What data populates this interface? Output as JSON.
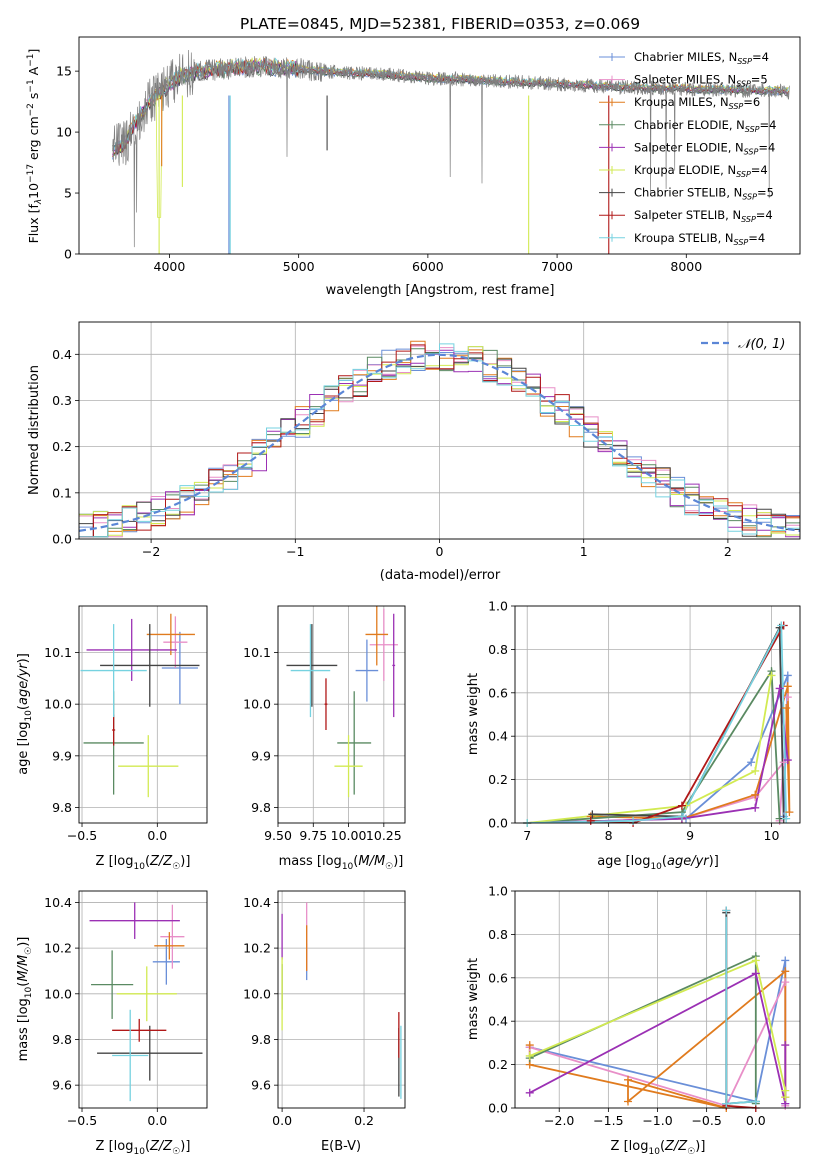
{
  "figure_title": "PLATE=0845, MJD=52381, FIBERID=0353, z=0.069",
  "colors": {
    "cm": "#6a8fd8",
    "sm": "#e88fc8",
    "km": "#e07b1e",
    "ce": "#5a8a62",
    "se": "#9b30b4",
    "ke": "#d2ea52",
    "cs": "#444444",
    "ss": "#b01818",
    "ks": "#76d2e0",
    "spec": "#808080",
    "norm": "#5b86d6",
    "grid": "#b0b0b0"
  },
  "chart_data": [
    {
      "id": "spectrum",
      "type": "line",
      "title": "PLATE=0845, MJD=52381, FIBERID=0353, z=0.069",
      "xlabel": "wavelength [Angstrom, rest frame]",
      "ylabel": "Flux [fλ10⁻¹⁷ erg cm⁻² s⁻¹ A⁻¹]",
      "xlim": [
        3300,
        8880
      ],
      "ylim": [
        0,
        17.8
      ],
      "xticks": [
        4000,
        5000,
        6000,
        7000,
        8000
      ],
      "yticks": [
        0,
        5,
        10,
        15
      ],
      "grid": false,
      "legend_position": "top-right",
      "observed_spectrum": {
        "x": [
          3560,
          3650,
          3750,
          3850,
          3950,
          4050,
          4150,
          4250,
          4350,
          4450,
          4550,
          4700,
          4850,
          5000,
          5150,
          5300,
          5500,
          5700,
          5900,
          6100,
          6300,
          6500,
          6700,
          6900,
          7100,
          7300,
          7500,
          7700,
          7900,
          8100,
          8300,
          8500,
          8700,
          8800
        ],
        "y": [
          8.5,
          9.0,
          11.0,
          12.5,
          13.5,
          14.3,
          14.8,
          15.0,
          15.1,
          15.2,
          15.3,
          15.4,
          15.3,
          15.2,
          15.0,
          14.9,
          14.8,
          14.7,
          14.5,
          14.4,
          14.3,
          14.2,
          14.1,
          14.0,
          13.9,
          13.8,
          13.7,
          13.6,
          13.6,
          13.5,
          13.5,
          13.4,
          13.4,
          13.3
        ]
      },
      "series": [
        {
          "name": "Chabrier MILES, N_SSP=4",
          "ckey": "cm"
        },
        {
          "name": "Salpeter MILES, N_SSP=5",
          "ckey": "sm"
        },
        {
          "name": "Kroupa MILES, N_SSP=6",
          "ckey": "km"
        },
        {
          "name": "Chabrier ELODIE, N_SSP=4",
          "ckey": "ce"
        },
        {
          "name": "Salpeter ELODIE, N_SSP=4",
          "ckey": "se"
        },
        {
          "name": "Kroupa ELODIE, N_SSP=4",
          "ckey": "ke"
        },
        {
          "name": "Chabrier STELIB, N_SSP=5",
          "ckey": "cs"
        },
        {
          "name": "Salpeter STELIB, N_SSP=4",
          "ckey": "ss"
        },
        {
          "name": "Kroupa STELIB, N_SSP=4",
          "ckey": "ks"
        }
      ],
      "legend_entries": [
        {
          "name": "Chabrier MILES, N",
          "sub": "SSP",
          "tail": "=4",
          "ckey": "cm"
        },
        {
          "name": "Salpeter MILES, N",
          "sub": "SSP",
          "tail": "=5",
          "ckey": "sm"
        },
        {
          "name": "Kroupa MILES, N",
          "sub": "SSP",
          "tail": "=6",
          "ckey": "km"
        },
        {
          "name": "Chabrier ELODIE, N",
          "sub": "SSP",
          "tail": "=4",
          "ckey": "ce"
        },
        {
          "name": "Salpeter ELODIE, N",
          "sub": "SSP",
          "tail": "=4",
          "ckey": "se"
        },
        {
          "name": "Kroupa ELODIE, N",
          "sub": "SSP",
          "tail": "=4",
          "ckey": "ke"
        },
        {
          "name": "Chabrier STELIB, N",
          "sub": "SSP",
          "tail": "=5",
          "ckey": "cs"
        },
        {
          "name": "Salpeter STELIB, N",
          "sub": "SSP",
          "tail": "=4",
          "ckey": "ss"
        },
        {
          "name": "Kroupa STELIB, N",
          "sub": "SSP",
          "tail": "=4",
          "ckey": "ks"
        }
      ]
    },
    {
      "id": "residuals",
      "type": "histogram",
      "xlabel": "(data-model)/error",
      "ylabel": "Normed distribution",
      "xlim": [
        -2.5,
        2.5
      ],
      "ylim": [
        0,
        0.47
      ],
      "xticks": [
        -2,
        -1,
        0,
        1,
        2
      ],
      "yticks": [
        0.0,
        0.1,
        0.2,
        0.3,
        0.4
      ],
      "grid": true,
      "legend_position": "top-right",
      "reference_curve": {
        "name": "𝒩(0, 1)",
        "mean": 0,
        "sigma": 1
      },
      "bin_width": 0.1,
      "note_bins": "Nine step histograms, one per model, each roughly following N(0,1) with scatter of about 0.03"
    },
    {
      "id": "age_vs_Z",
      "type": "errorbar",
      "xlabel": "Z [log10(Z/Z☉)]",
      "ylabel": "age  [log10(age/yr)]",
      "xlim": [
        -0.52,
        0.33
      ],
      "ylim": [
        9.77,
        10.19
      ],
      "xticks": [
        -0.5,
        0.0
      ],
      "yticks": [
        9.8,
        9.9,
        10.0,
        10.1
      ],
      "grid": true,
      "points": [
        {
          "ckey": "cm",
          "x": 0.15,
          "y": 10.07,
          "xerr": 0.12,
          "yerr": 0.07
        },
        {
          "ckey": "sm",
          "x": 0.12,
          "y": 10.12,
          "xerr": 0.08,
          "yerr": 0.05
        },
        {
          "ckey": "km",
          "x": 0.09,
          "y": 10.135,
          "xerr": 0.16,
          "yerr": 0.04
        },
        {
          "ckey": "ce",
          "x": -0.29,
          "y": 9.925,
          "xerr": 0.2,
          "yerr": 0.1
        },
        {
          "ckey": "se",
          "x": -0.17,
          "y": 10.105,
          "xerr": 0.3,
          "yerr": 0.06
        },
        {
          "ckey": "ke",
          "x": -0.06,
          "y": 9.88,
          "xerr": 0.2,
          "yerr": 0.06
        },
        {
          "ckey": "cs",
          "x": -0.05,
          "y": 10.075,
          "xerr": 0.33,
          "yerr": 0.08
        },
        {
          "ckey": "ss",
          "x": -0.29,
          "y": 9.95,
          "xerr": 0.01,
          "yerr": 0.03
        },
        {
          "ckey": "ks",
          "x": -0.29,
          "y": 10.065,
          "xerr": 0.22,
          "yerr": 0.09
        }
      ]
    },
    {
      "id": "age_vs_mass",
      "type": "errorbar",
      "xlabel": "mass [log10(M/M☉)]",
      "ylabel": "",
      "xlim": [
        9.5,
        10.4
      ],
      "ylim": [
        9.77,
        10.19
      ],
      "xticks": [
        9.5,
        9.75,
        10.0,
        10.25
      ],
      "xticklabels": [
        "9.50",
        "9.75",
        "10.00",
        "10.25"
      ],
      "yticks": [
        9.8,
        9.9,
        10.0,
        10.1
      ],
      "grid": true,
      "points": [
        {
          "ckey": "cm",
          "x": 10.13,
          "y": 10.065,
          "xerr": 0.08,
          "yerr": 0.06
        },
        {
          "ckey": "sm",
          "x": 10.25,
          "y": 10.115,
          "xerr": 0.1,
          "yerr": 0.07
        },
        {
          "ckey": "km",
          "x": 10.2,
          "y": 10.135,
          "xerr": 0.08,
          "yerr": 0.06
        },
        {
          "ckey": "ce",
          "x": 10.04,
          "y": 9.925,
          "xerr": 0.12,
          "yerr": 0.1
        },
        {
          "ckey": "se",
          "x": 10.32,
          "y": 10.075,
          "xerr": 0.01,
          "yerr": 0.1
        },
        {
          "ckey": "ke",
          "x": 10.0,
          "y": 9.88,
          "xerr": 0.1,
          "yerr": 0.06
        },
        {
          "ckey": "cs",
          "x": 9.74,
          "y": 10.075,
          "xerr": 0.18,
          "yerr": 0.08
        },
        {
          "ckey": "ss",
          "x": 9.84,
          "y": 10.0,
          "xerr": 0.01,
          "yerr": 0.05
        },
        {
          "ckey": "ks",
          "x": 9.73,
          "y": 10.065,
          "xerr": 0.14,
          "yerr": 0.09
        }
      ]
    },
    {
      "id": "weight_vs_age",
      "type": "line",
      "xlabel": "age  [log10(age/yr)]",
      "ylabel": "mass weight",
      "xlim": [
        6.85,
        10.35
      ],
      "ylim": [
        0,
        1.0
      ],
      "xticks": [
        7,
        8,
        9,
        10
      ],
      "yticks": [
        0.0,
        0.2,
        0.4,
        0.6,
        0.8,
        1.0
      ],
      "grid": true,
      "series": [
        {
          "ckey": "cm",
          "x": [
            7.0,
            8.95,
            9.75,
            10.2,
            10.15
          ],
          "y": [
            0.0,
            0.02,
            0.28,
            0.68,
            0.03
          ]
        },
        {
          "ckey": "sm",
          "x": [
            7.0,
            8.9,
            9.8,
            10.15,
            10.2,
            10.1
          ],
          "y": [
            0.0,
            0.02,
            0.12,
            0.28,
            0.58,
            0.01
          ]
        },
        {
          "ckey": "km",
          "x": [
            7.78,
            8.9,
            9.8,
            10.2,
            10.22,
            10.18
          ],
          "y": [
            0.03,
            0.02,
            0.13,
            0.63,
            0.05,
            0.53
          ]
        },
        {
          "ckey": "ce",
          "x": [
            7.0,
            8.9,
            10.0,
            10.1
          ],
          "y": [
            0.0,
            0.05,
            0.7,
            0.02
          ]
        },
        {
          "ckey": "se",
          "x": [
            7.0,
            8.9,
            9.8,
            10.1,
            10.2
          ],
          "y": [
            0.0,
            0.02,
            0.07,
            0.62,
            0.29
          ]
        },
        {
          "ckey": "ke",
          "x": [
            7.0,
            8.95,
            9.8,
            10.0
          ],
          "y": [
            0.0,
            0.08,
            0.24,
            0.68
          ]
        },
        {
          "ckey": "cs",
          "x": [
            7.8,
            8.9,
            10.1,
            10.15
          ],
          "y": [
            0.04,
            0.03,
            0.9,
            0.02
          ]
        },
        {
          "ckey": "ss",
          "x": [
            7.78,
            8.3,
            8.9,
            10.15
          ],
          "y": [
            0.01,
            0.0,
            0.08,
            0.91
          ]
        },
        {
          "ckey": "ks",
          "x": [
            7.0,
            8.3,
            8.9,
            10.12,
            10.18
          ],
          "y": [
            0.0,
            0.01,
            0.03,
            0.91,
            0.02
          ]
        }
      ]
    },
    {
      "id": "mass_vs_Z",
      "type": "errorbar",
      "xlabel": "Z [log10(Z/Z☉)]",
      "ylabel": "mass [log10(M/M☉)]",
      "xlim": [
        -0.52,
        0.33
      ],
      "ylim": [
        9.5,
        10.45
      ],
      "xticks": [
        -0.5,
        0.0
      ],
      "yticks": [
        9.6,
        9.8,
        10.0,
        10.2,
        10.4
      ],
      "grid": true,
      "points": [
        {
          "ckey": "cm",
          "x": 0.06,
          "y": 10.14,
          "xerr": 0.09,
          "yerr": 0.1
        },
        {
          "ckey": "sm",
          "x": 0.1,
          "y": 10.25,
          "xerr": 0.08,
          "yerr": 0.14
        },
        {
          "ckey": "km",
          "x": 0.08,
          "y": 10.21,
          "xerr": 0.1,
          "yerr": 0.06
        },
        {
          "ckey": "ce",
          "x": -0.3,
          "y": 10.04,
          "xerr": 0.14,
          "yerr": 0.15
        },
        {
          "ckey": "se",
          "x": -0.15,
          "y": 10.32,
          "xerr": 0.3,
          "yerr": 0.08
        },
        {
          "ckey": "ke",
          "x": -0.07,
          "y": 10.0,
          "xerr": 0.2,
          "yerr": 0.12
        },
        {
          "ckey": "cs",
          "x": -0.05,
          "y": 9.74,
          "xerr": 0.35,
          "yerr": 0.12
        },
        {
          "ckey": "ss",
          "x": -0.12,
          "y": 9.84,
          "xerr": 0.18,
          "yerr": 0.05
        },
        {
          "ckey": "ks",
          "x": -0.18,
          "y": 9.73,
          "xerr": 0.12,
          "yerr": 0.2
        }
      ]
    },
    {
      "id": "mass_vs_EBV",
      "type": "errorbar",
      "xlabel": "E(B-V)",
      "ylabel": "",
      "xlim": [
        -0.01,
        0.3
      ],
      "ylim": [
        9.5,
        10.45
      ],
      "xticks": [
        0.0,
        0.2
      ],
      "yticks": [
        9.6,
        9.8,
        10.0,
        10.2,
        10.4
      ],
      "grid": true,
      "points": [
        {
          "ckey": "cm",
          "x": 0.06,
          "y": 10.14,
          "xerr": 0.0,
          "yerr": 0.08
        },
        {
          "ckey": "sm",
          "x": 0.06,
          "y": 10.25,
          "xerr": 0.0,
          "yerr": 0.15
        },
        {
          "ckey": "km",
          "x": 0.06,
          "y": 10.2,
          "xerr": 0.0,
          "yerr": 0.1
        },
        {
          "ckey": "ce",
          "x": 0.0,
          "y": 10.03,
          "xerr": 0.0,
          "yerr": 0.1
        },
        {
          "ckey": "se",
          "x": 0.0,
          "y": 10.25,
          "xerr": 0.0,
          "yerr": 0.1
        },
        {
          "ckey": "ke",
          "x": 0.0,
          "y": 10.0,
          "xerr": 0.0,
          "yerr": 0.16
        },
        {
          "ckey": "cs",
          "x": 0.285,
          "y": 9.7,
          "xerr": 0.0,
          "yerr": 0.15
        },
        {
          "ckey": "ss",
          "x": 0.285,
          "y": 9.82,
          "xerr": 0.0,
          "yerr": 0.1
        },
        {
          "ckey": "ks",
          "x": 0.29,
          "y": 9.7,
          "xerr": 0.0,
          "yerr": 0.16
        }
      ]
    },
    {
      "id": "weight_vs_Z",
      "type": "line",
      "xlabel": "Z [log10(Z/Z☉)]",
      "ylabel": "mass weight",
      "xlim": [
        -2.45,
        0.45
      ],
      "ylim": [
        0,
        1.0
      ],
      "xticks": [
        -2.0,
        -1.5,
        -1.0,
        -0.5,
        0.0
      ],
      "yticks": [
        0.0,
        0.2,
        0.4,
        0.6,
        0.8,
        1.0
      ],
      "grid": true,
      "series": [
        {
          "ckey": "cm",
          "x": [
            -2.3,
            0.0,
            0.3,
            0.3
          ],
          "y": [
            0.28,
            0.03,
            0.68,
            0.02
          ]
        },
        {
          "ckey": "sm",
          "x": [
            -2.3,
            -0.3,
            0.3,
            0.3
          ],
          "y": [
            0.28,
            0.01,
            0.58,
            0.01
          ]
        },
        {
          "ckey": "km",
          "x": [
            -2.3,
            -2.3,
            -0.3,
            -1.3,
            -1.3,
            0.3,
            0.3
          ],
          "y": [
            0.29,
            0.2,
            0.0,
            0.13,
            0.03,
            0.63,
            0.05
          ]
        },
        {
          "ckey": "ce",
          "x": [
            -2.3,
            0.0,
            0.0
          ],
          "y": [
            0.23,
            0.7,
            0.02
          ]
        },
        {
          "ckey": "se",
          "x": [
            -2.3,
            0.0,
            0.3,
            0.3
          ],
          "y": [
            0.07,
            0.62,
            0.02,
            0.29
          ]
        },
        {
          "ckey": "ke",
          "x": [
            -2.3,
            0.0,
            0.3,
            0.3
          ],
          "y": [
            0.24,
            0.68,
            0.08,
            0.05
          ]
        },
        {
          "ckey": "cs",
          "x": [
            -0.3,
            -0.3,
            0.0
          ],
          "y": [
            0.9,
            0.02,
            0.03
          ]
        },
        {
          "ckey": "ss",
          "x": [
            -0.3,
            -0.3,
            0.0
          ],
          "y": [
            0.91,
            0.01,
            0.0
          ]
        },
        {
          "ckey": "ks",
          "x": [
            -0.3,
            -0.3,
            0.0
          ],
          "y": [
            0.91,
            0.02,
            0.03
          ]
        }
      ]
    }
  ]
}
